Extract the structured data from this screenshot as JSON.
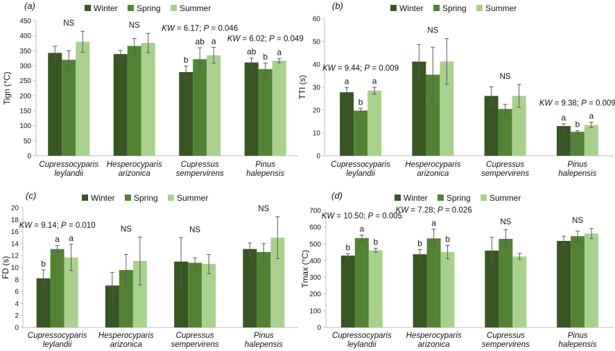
{
  "figure": {
    "legend": [
      "Winter",
      "Spring",
      "Summer"
    ],
    "colors": {
      "Winter": "#375623",
      "Spring": "#548235",
      "Summer": "#a9d18e",
      "axis": "#bfbfbf",
      "error": "#595959"
    }
  },
  "chart_data": [
    {
      "id": "a",
      "panel_label": "(a)",
      "type": "bar",
      "ylabel": "Tign (°C)",
      "ylim": [
        0,
        450
      ],
      "yticks": [
        0,
        50,
        100,
        150,
        200,
        250,
        300,
        350,
        400,
        450
      ],
      "categories": [
        [
          "Cupressocyparis",
          "leylandii"
        ],
        [
          "Hesperocyparis",
          "arizonica"
        ],
        [
          "Cupressus",
          "sempervirens"
        ],
        [
          "Pinus",
          "halepensis"
        ]
      ],
      "series": [
        {
          "name": "Winter",
          "values": [
            343,
            339,
            279,
            311
          ],
          "errors": [
            22,
            12,
            20,
            15
          ]
        },
        {
          "name": "Spring",
          "values": [
            320,
            366,
            322,
            289
          ],
          "errors": [
            30,
            25,
            38,
            20
          ]
        },
        {
          "name": "Summer",
          "values": [
            380,
            376,
            335,
            317
          ],
          "errors": [
            35,
            32,
            26,
            7
          ]
        }
      ],
      "letters": [
        [
          "",
          "",
          ""
        ],
        [
          "",
          "",
          ""
        ],
        [
          "b",
          "ab",
          "a"
        ],
        [
          "ab",
          "b",
          "a"
        ]
      ],
      "annotations": [
        {
          "cat": 0,
          "parts": [
            "NS"
          ]
        },
        {
          "cat": 1,
          "parts": [
            "NS"
          ]
        },
        {
          "cat": 2,
          "parts": [
            "KW",
            " = 6.17; ",
            "P",
            " = 0.046"
          ]
        },
        {
          "cat": 3,
          "parts": [
            "KW",
            " = 6.02; ",
            "P",
            " = 0.049"
          ]
        }
      ]
    },
    {
      "id": "b",
      "panel_label": "(b)",
      "type": "bar",
      "ylabel": "TTI (s)",
      "ylim": [
        0,
        60
      ],
      "yticks": [
        0,
        10,
        20,
        30,
        40,
        50,
        60
      ],
      "categories": [
        [
          "Cupressocyparis",
          "leylandii"
        ],
        [
          "Hesperocyparis",
          "arizonica"
        ],
        [
          "Cupressus",
          "sempervirens"
        ],
        [
          "Pinus",
          "halepensis"
        ]
      ],
      "series": [
        {
          "name": "Winter",
          "values": [
            27.8,
            41.2,
            26.2,
            13.0
          ],
          "errors": [
            2.0,
            7.5,
            4.0,
            1.0
          ]
        },
        {
          "name": "Spring",
          "values": [
            19.8,
            35.5,
            20.5,
            10.5
          ],
          "errors": [
            1.0,
            12.0,
            2.0,
            0.5
          ]
        },
        {
          "name": "Summer",
          "values": [
            28.5,
            41.3,
            26.2,
            13.5
          ],
          "errors": [
            1.5,
            10.0,
            5.0,
            1.2
          ]
        }
      ],
      "letters": [
        [
          "a",
          "b",
          "a"
        ],
        [
          "",
          "",
          ""
        ],
        [
          "",
          "",
          ""
        ],
        [
          "a",
          "b",
          "a"
        ]
      ],
      "annotations": [
        {
          "cat": 0,
          "parts": [
            "KW",
            " = 9.44; ",
            "P",
            " = 0.009"
          ]
        },
        {
          "cat": 1,
          "parts": [
            "NS"
          ]
        },
        {
          "cat": 2,
          "parts": [
            "NS"
          ]
        },
        {
          "cat": 3,
          "parts": [
            "KW",
            " = 9.38; ",
            "P",
            " = 0.009"
          ]
        }
      ]
    },
    {
      "id": "c",
      "panel_label": "(c)",
      "type": "bar",
      "ylabel": "FD (s)",
      "ylim": [
        0,
        20
      ],
      "yticks": [
        0,
        2,
        4,
        6,
        8,
        10,
        12,
        14,
        16,
        18,
        20
      ],
      "categories": [
        [
          "Cupressocyparis",
          "leylandii"
        ],
        [
          "Hesperocyparis",
          "arizonica"
        ],
        [
          "Cupressus",
          "sempervirens"
        ],
        [
          "Pinus",
          "halepensis"
        ]
      ],
      "series": [
        {
          "name": "Winter",
          "values": [
            8.2,
            7.0,
            11.0,
            13.1
          ],
          "errors": [
            1.4,
            2.2,
            4.0,
            1.0
          ]
        },
        {
          "name": "Spring",
          "values": [
            13.1,
            9.6,
            10.8,
            12.6
          ],
          "errors": [
            0.6,
            2.6,
            0.8,
            1.4
          ]
        },
        {
          "name": "Summer",
          "values": [
            11.7,
            11.1,
            10.6,
            15.0
          ],
          "errors": [
            2.2,
            4.0,
            1.6,
            3.5
          ]
        }
      ],
      "letters": [
        [
          "b",
          "a",
          "a"
        ],
        [
          "",
          "",
          ""
        ],
        [
          "",
          "",
          ""
        ],
        [
          "",
          "",
          ""
        ]
      ],
      "annotations": [
        {
          "cat": 0,
          "parts": [
            "KW",
            " = 9.14; ",
            "P",
            " = 0.010"
          ]
        },
        {
          "cat": 1,
          "parts": [
            "NS"
          ]
        },
        {
          "cat": 2,
          "parts": [
            "NS"
          ]
        },
        {
          "cat": 3,
          "parts": [
            "NS"
          ]
        }
      ]
    },
    {
      "id": "d",
      "panel_label": "(d)",
      "type": "bar",
      "ylabel": "Tmax (°C)",
      "ylim": [
        0,
        700
      ],
      "yticks": [
        0,
        100,
        200,
        300,
        400,
        500,
        600,
        700
      ],
      "categories": [
        [
          "Cupressocyparis",
          "leylandii"
        ],
        [
          "Hesperocyparis",
          "arizonica"
        ],
        [
          "Cupressus",
          "sempervirens"
        ],
        [
          "Pinus",
          "halepensis"
        ]
      ],
      "series": [
        {
          "name": "Winter",
          "values": [
            430,
            438,
            460,
            518
          ],
          "errors": [
            12,
            28,
            80,
            28
          ]
        },
        {
          "name": "Spring",
          "values": [
            535,
            533,
            530,
            546
          ],
          "errors": [
            18,
            55,
            55,
            30
          ]
        },
        {
          "name": "Summer",
          "values": [
            462,
            451,
            425,
            562
          ],
          "errors": [
            12,
            40,
            18,
            30
          ]
        }
      ],
      "letters": [
        [
          "b",
          "a",
          "b"
        ],
        [
          "b",
          "a",
          "b"
        ],
        [
          "",
          "",
          ""
        ],
        [
          "",
          "",
          ""
        ]
      ],
      "annotations": [
        {
          "cat": 0,
          "parts": [
            "KW",
            " = 10.50; ",
            "P",
            " = 0.005"
          ]
        },
        {
          "cat": 1,
          "parts": [
            "KW",
            " = 7.28; ",
            "P",
            " = 0.026"
          ]
        },
        {
          "cat": 2,
          "parts": [
            "NS"
          ]
        },
        {
          "cat": 3,
          "parts": [
            "NS"
          ]
        }
      ]
    }
  ]
}
